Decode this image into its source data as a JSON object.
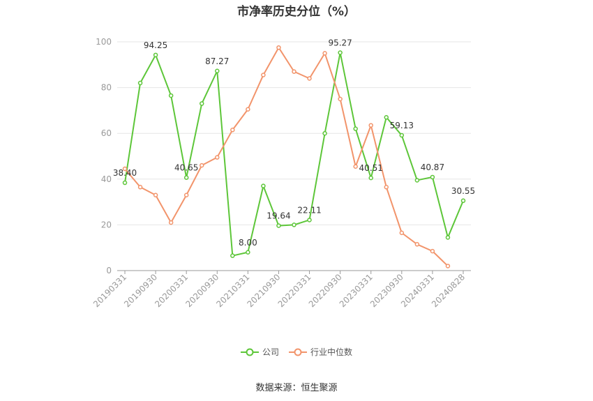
{
  "chart_data": {
    "type": "line",
    "title": "市净率历史分位（%）",
    "ylim": [
      0,
      100
    ],
    "yticks": [
      0,
      20,
      40,
      60,
      80,
      100
    ],
    "x": [
      "20190331",
      "20190630",
      "20190930",
      "20191231",
      "20200331",
      "20200630",
      "20200930",
      "20201231",
      "20210331",
      "20210630",
      "20210930",
      "20211231",
      "20220331",
      "20220630",
      "20220930",
      "20221231",
      "20230331",
      "20230630",
      "20230930",
      "20231231",
      "20240331",
      "20240630",
      "20240828"
    ],
    "xticks": [
      "20190331",
      "20190930",
      "20200331",
      "20200930",
      "20210331",
      "20210930",
      "20220331",
      "20220930",
      "20230331",
      "20230930",
      "20240331",
      "20240828"
    ],
    "series": [
      {
        "name": "公司",
        "color": "#5dc639",
        "values": [
          38.4,
          82.0,
          94.25,
          76.5,
          40.65,
          73.0,
          87.27,
          6.5,
          8.0,
          37.0,
          19.64,
          20.0,
          22.11,
          60.0,
          95.27,
          62.0,
          40.51,
          67.0,
          59.13,
          39.5,
          40.87,
          14.5,
          30.55
        ],
        "labels": [
          "38.40",
          null,
          "94.25",
          null,
          "40.65",
          null,
          "87.27",
          null,
          "8.00",
          null,
          "19.64",
          null,
          "22.11",
          null,
          "95.27",
          null,
          "40.51",
          null,
          "59.13",
          null,
          "40.87",
          null,
          "30.55"
        ]
      },
      {
        "name": "行业中位数",
        "color": "#f2946b",
        "values": [
          44.5,
          36.5,
          33.0,
          21.0,
          33.0,
          46.0,
          49.5,
          61.5,
          70.5,
          85.5,
          97.5,
          87.0,
          84.0,
          95.0,
          75.0,
          45.5,
          63.5,
          36.5,
          16.5,
          11.5,
          8.5,
          2.0,
          null
        ]
      }
    ]
  },
  "legend": {
    "company": "公司",
    "industry": "行业中位数"
  },
  "source": "数据来源：恒生聚源"
}
